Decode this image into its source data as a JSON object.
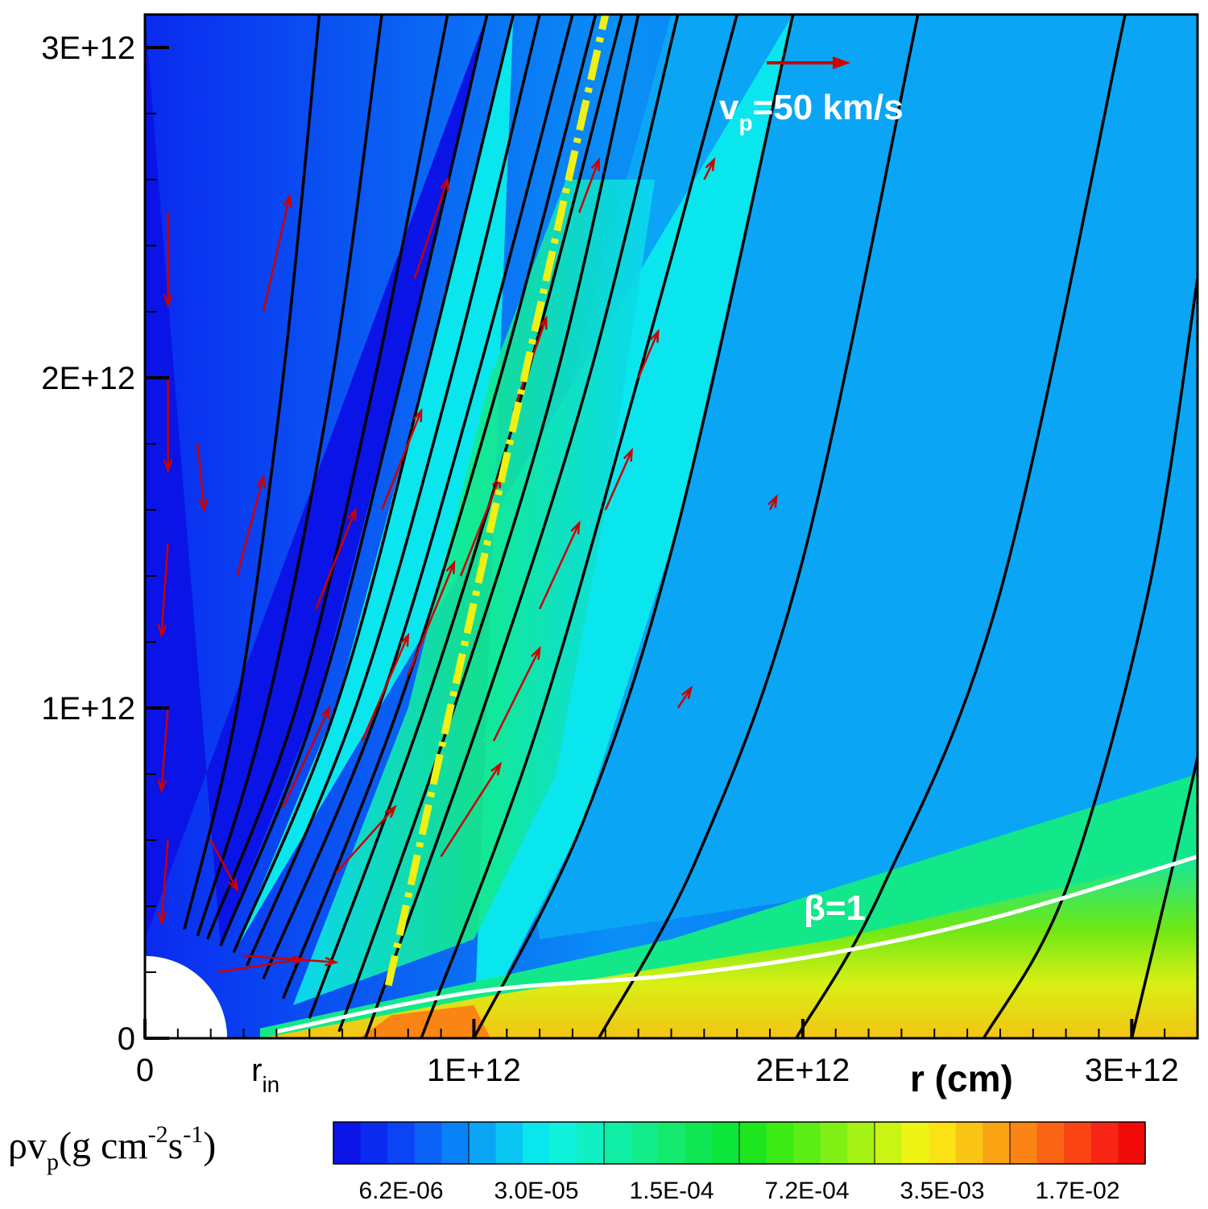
{
  "chart_data": {
    "type": "contour",
    "xlabel": "r (cm)",
    "x_ticks": [
      "0",
      "1E+12",
      "2E+12",
      "3E+12"
    ],
    "x_tick_values": [
      0,
      1000000000000.0,
      2000000000000.0,
      3000000000000.0
    ],
    "x_special_label": "r",
    "x_special_label_sub": "in",
    "x_special_value": 250000000000.0,
    "y_ticks": [
      "0",
      "1E+12",
      "2E+12",
      "3E+12"
    ],
    "y_tick_values": [
      0,
      1000000000000.0,
      2000000000000.0,
      3000000000000.0
    ],
    "xlim": [
      0,
      3200000000000.0
    ],
    "ylim": [
      0,
      3100000000000.0
    ],
    "colorbar": {
      "title_main": "ρv",
      "title_sub": "p",
      "title_unit_a": "(g cm",
      "title_sup1": "-2",
      "title_unit_b": "s",
      "title_sup2": "-1",
      "title_close": ")",
      "labels": [
        "6.2E-06",
        "3.0E-05",
        "1.5E-04",
        "7.2E-04",
        "3.5E-03",
        "1.7E-02"
      ],
      "colors": [
        "#0a14e6",
        "#0a2af0",
        "#0a44f5",
        "#0a62f7",
        "#0a82f7",
        "#0aa6f5",
        "#0ac6f2",
        "#0ae6ee",
        "#10f2dc",
        "#10f0c2",
        "#10eea6",
        "#12ec8a",
        "#14ea6e",
        "#10e654",
        "#0ae63a",
        "#1ee61e",
        "#3cea14",
        "#5cee14",
        "#80f014",
        "#a6f214",
        "#caf414",
        "#eef414",
        "#fae214",
        "#fac414",
        "#faa414",
        "#fa8414",
        "#fa6414",
        "#fa4414",
        "#f82414",
        "#f00a0a"
      ]
    },
    "annotations": {
      "velocity_scale": {
        "label_main": "v",
        "label_sub": "p",
        "label_rest": "=50 km/s"
      },
      "beta_line": {
        "label": "β=1",
        "points": [
          [
            400000000000.0,
            20000000000.0
          ],
          [
            1000000000000.0,
            140000000000.0
          ],
          [
            1600000000000.0,
            190000000000.0
          ],
          [
            2100000000000.0,
            260000000000.0
          ],
          [
            2600000000000.0,
            370000000000.0
          ],
          [
            3200000000000.0,
            550000000000.0
          ]
        ]
      },
      "yellow_line": {
        "points": [
          [
            740000000000.0,
            160000000000.0
          ],
          [
            1400000000000.0,
            3100000000000.0
          ]
        ]
      }
    },
    "field_lines": [
      [
        [
          120000000000.0,
          330000000000.0
        ],
        [
          280000000000.0,
          1000000000000.0
        ],
        [
          420000000000.0,
          2000000000000.0
        ],
        [
          530000000000.0,
          3100000000000.0
        ]
      ],
      [
        [
          160000000000.0,
          310000000000.0
        ],
        [
          370000000000.0,
          1000000000000.0
        ],
        [
          570000000000.0,
          2000000000000.0
        ],
        [
          720000000000.0,
          3100000000000.0
        ]
      ],
      [
        [
          190000000000.0,
          300000000000.0
        ],
        [
          460000000000.0,
          1000000000000.0
        ],
        [
          700000000000.0,
          2000000000000.0
        ],
        [
          920000000000.0,
          3100000000000.0
        ]
      ],
      [
        [
          230000000000.0,
          280000000000.0
        ],
        [
          520000000000.0,
          1000000000000.0
        ],
        [
          780000000000.0,
          2000000000000.0
        ],
        [
          1040000000000.0,
          3100000000000.0
        ]
      ],
      [
        [
          270000000000.0,
          260000000000.0
        ],
        [
          580000000000.0,
          1000000000000.0
        ],
        [
          850000000000.0,
          2000000000000.0
        ],
        [
          1120000000000.0,
          3100000000000.0
        ]
      ],
      [
        [
          310000000000.0,
          220000000000.0
        ],
        [
          640000000000.0,
          1000000000000.0
        ],
        [
          930000000000.0,
          2000000000000.0
        ],
        [
          1200000000000.0,
          3100000000000.0
        ]
      ],
      [
        [
          360000000000.0,
          180000000000.0
        ],
        [
          710000000000.0,
          1000000000000.0
        ],
        [
          1010000000000.0,
          2000000000000.0
        ],
        [
          1300000000000.0,
          3100000000000.0
        ]
      ],
      [
        [
          420000000000.0,
          120000000000.0
        ],
        [
          770000000000.0,
          1000000000000.0
        ],
        [
          1080000000000.0,
          2000000000000.0
        ],
        [
          1370000000000.0,
          3100000000000.0
        ]
      ],
      [
        [
          500000000000.0,
          60000000000.0
        ],
        [
          850000000000.0,
          1000000000000.0
        ],
        [
          1160000000000.0,
          2000000000000.0
        ],
        [
          1450000000000.0,
          3100000000000.0
        ]
      ],
      [
        [
          590000000000.0,
          20000000000.0
        ],
        [
          940000000000.0,
          1000000000000.0
        ],
        [
          1250000000000.0,
          2000000000000.0
        ],
        [
          1500000000000.0,
          3100000000000.0
        ]
      ],
      [
        [
          670000000000.0,
          0.0
        ],
        [
          1030000000000.0,
          1000000000000.0
        ],
        [
          1350000000000.0,
          2000000000000.0
        ],
        [
          1620000000000.0,
          3100000000000.0
        ]
      ],
      [
        [
          840000000000.0,
          0.0
        ],
        [
          1180000000000.0,
          900000000000.0
        ],
        [
          1500000000000.0,
          2000000000000.0
        ],
        [
          1800000000000.0,
          3100000000000.0
        ]
      ],
      [
        [
          1000000000000.0,
          0.0
        ],
        [
          1330000000000.0,
          650000000000.0
        ],
        [
          1620000000000.0,
          1550000000000.0
        ],
        [
          1970000000000.0,
          3100000000000.0
        ]
      ],
      [
        [
          1380000000000.0,
          0.0
        ],
        [
          1680000000000.0,
          550000000000.0
        ],
        [
          2000000000000.0,
          1450000000000.0
        ],
        [
          2350000000000.0,
          3100000000000.0
        ]
      ],
      [
        [
          1980000000000.0,
          0.0
        ],
        [
          2240000000000.0,
          450000000000.0
        ],
        [
          2600000000000.0,
          1350000000000.0
        ],
        [
          2980000000000.0,
          3100000000000.0
        ]
      ],
      [
        [
          2550000000000.0,
          0.0
        ],
        [
          2800000000000.0,
          450000000000.0
        ],
        [
          3050000000000.0,
          1350000000000.0
        ],
        [
          3200000000000.0,
          2300000000000.0
        ]
      ],
      [
        [
          3000000000000.0,
          0.0
        ],
        [
          3120000000000.0,
          500000000000.0
        ],
        [
          3200000000000.0,
          850000000000.0
        ]
      ]
    ],
    "velocity_vectors": [
      [
        70000000000.0,
        600000000000.0,
        -20000000000.0,
        -250000000000.0
      ],
      [
        70000000000.0,
        1000000000000.0,
        -20000000000.0,
        -250000000000.0
      ],
      [
        70000000000.0,
        1500000000000.0,
        -20000000000.0,
        -280000000000.0
      ],
      [
        70000000000.0,
        2000000000000.0,
        0.0,
        -280000000000.0
      ],
      [
        70000000000.0,
        2500000000000.0,
        0.0,
        -280000000000.0
      ],
      [
        160000000000.0,
        1800000000000.0,
        20000000000.0,
        -200000000000.0
      ],
      [
        200000000000.0,
        600000000000.0,
        80000000000.0,
        -150000000000.0
      ],
      [
        280000000000.0,
        1400000000000.0,
        80000000000.0,
        300000000000.0
      ],
      [
        360000000000.0,
        2200000000000.0,
        80000000000.0,
        350000000000.0
      ],
      [
        420000000000.0,
        700000000000.0,
        140000000000.0,
        300000000000.0
      ],
      [
        520000000000.0,
        1300000000000.0,
        120000000000.0,
        300000000000.0
      ],
      [
        580000000000.0,
        500000000000.0,
        180000000000.0,
        200000000000.0
      ],
      [
        660000000000.0,
        900000000000.0,
        140000000000.0,
        320000000000.0
      ],
      [
        720000000000.0,
        1600000000000.0,
        120000000000.0,
        300000000000.0
      ],
      [
        800000000000.0,
        1100000000000.0,
        140000000000.0,
        340000000000.0
      ],
      [
        820000000000.0,
        2300000000000.0,
        100000000000.0,
        300000000000.0
      ],
      [
        900000000000.0,
        550000000000.0,
        180000000000.0,
        280000000000.0
      ],
      [
        960000000000.0,
        1400000000000.0,
        120000000000.0,
        300000000000.0
      ],
      [
        1060000000000.0,
        900000000000.0,
        140000000000.0,
        280000000000.0
      ],
      [
        1120000000000.0,
        1900000000000.0,
        100000000000.0,
        280000000000.0
      ],
      [
        1200000000000.0,
        1300000000000.0,
        120000000000.0,
        260000000000.0
      ],
      [
        1320000000000.0,
        2500000000000.0,
        60000000000.0,
        160000000000.0
      ],
      [
        1400000000000.0,
        1600000000000.0,
        80000000000.0,
        180000000000.0
      ],
      [
        1500000000000.0,
        2000000000000.0,
        60000000000.0,
        140000000000.0
      ],
      [
        1620000000000.0,
        1000000000000.0,
        40000000000.0,
        60000000000.0
      ],
      [
        1700000000000.0,
        2600000000000.0,
        30000000000.0,
        60000000000.0
      ],
      [
        1900000000000.0,
        1600000000000.0,
        20000000000.0,
        40000000000.0
      ],
      [
        300000000000.0,
        250000000000.0,
        280000000000.0,
        -20000000000.0
      ],
      [
        220000000000.0,
        200000000000.0,
        260000000000.0,
        40000000000.0
      ]
    ]
  }
}
